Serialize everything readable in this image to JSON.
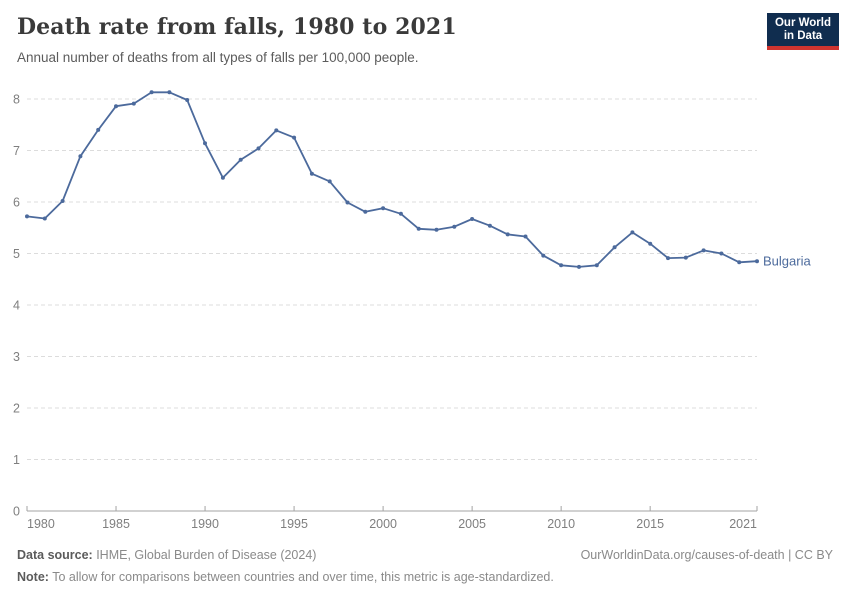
{
  "header": {
    "title": "Death rate from falls, 1980 to 2021",
    "subtitle": "Annual number of deaths from all types of falls per 100,000 people."
  },
  "logo": {
    "line1": "Our World",
    "line2": "in Data",
    "bg_color": "#102d4f",
    "bar_color": "#cf342f"
  },
  "chart_data": {
    "type": "line",
    "title": "Death rate from falls, 1980 to 2021",
    "subtitle": "Annual number of deaths from all types of falls per 100,000 people.",
    "xlabel": "",
    "ylabel": "",
    "ylim": [
      0,
      8
    ],
    "yticks": [
      0,
      1,
      2,
      3,
      4,
      5,
      6,
      7,
      8
    ],
    "xticks": [
      1980,
      1985,
      1990,
      1995,
      2000,
      2005,
      2010,
      2015,
      2021
    ],
    "grid": "horizontal-dashed",
    "legend_position": "end-of-line-label",
    "x": [
      1980,
      1981,
      1982,
      1983,
      1984,
      1985,
      1986,
      1987,
      1988,
      1989,
      1990,
      1991,
      1992,
      1993,
      1994,
      1995,
      1996,
      1997,
      1998,
      1999,
      2000,
      2001,
      2002,
      2003,
      2004,
      2005,
      2006,
      2007,
      2008,
      2009,
      2010,
      2011,
      2012,
      2013,
      2014,
      2015,
      2016,
      2017,
      2018,
      2019,
      2020,
      2021
    ],
    "series": [
      {
        "name": "Bulgaria",
        "color": "#4c6a9c",
        "values": [
          5.72,
          5.68,
          6.02,
          6.89,
          7.4,
          7.86,
          7.91,
          8.13,
          8.13,
          7.98,
          7.14,
          6.47,
          6.82,
          7.04,
          7.39,
          7.25,
          6.55,
          6.4,
          5.99,
          5.81,
          5.88,
          5.77,
          5.48,
          5.46,
          5.52,
          5.67,
          5.54,
          5.37,
          5.33,
          4.96,
          4.77,
          4.74,
          4.77,
          5.12,
          5.41,
          5.19,
          4.91,
          4.92,
          5.06,
          5.0,
          4.83,
          4.85
        ]
      }
    ]
  },
  "footer": {
    "source_label": "Data source:",
    "source_text": " IHME, Global Burden of Disease (2024)",
    "rights": "OurWorldinData.org/causes-of-death | CC BY",
    "note_label": "Note:",
    "note_text": " To allow for comparisons between countries and over time, this metric is age-standardized."
  }
}
